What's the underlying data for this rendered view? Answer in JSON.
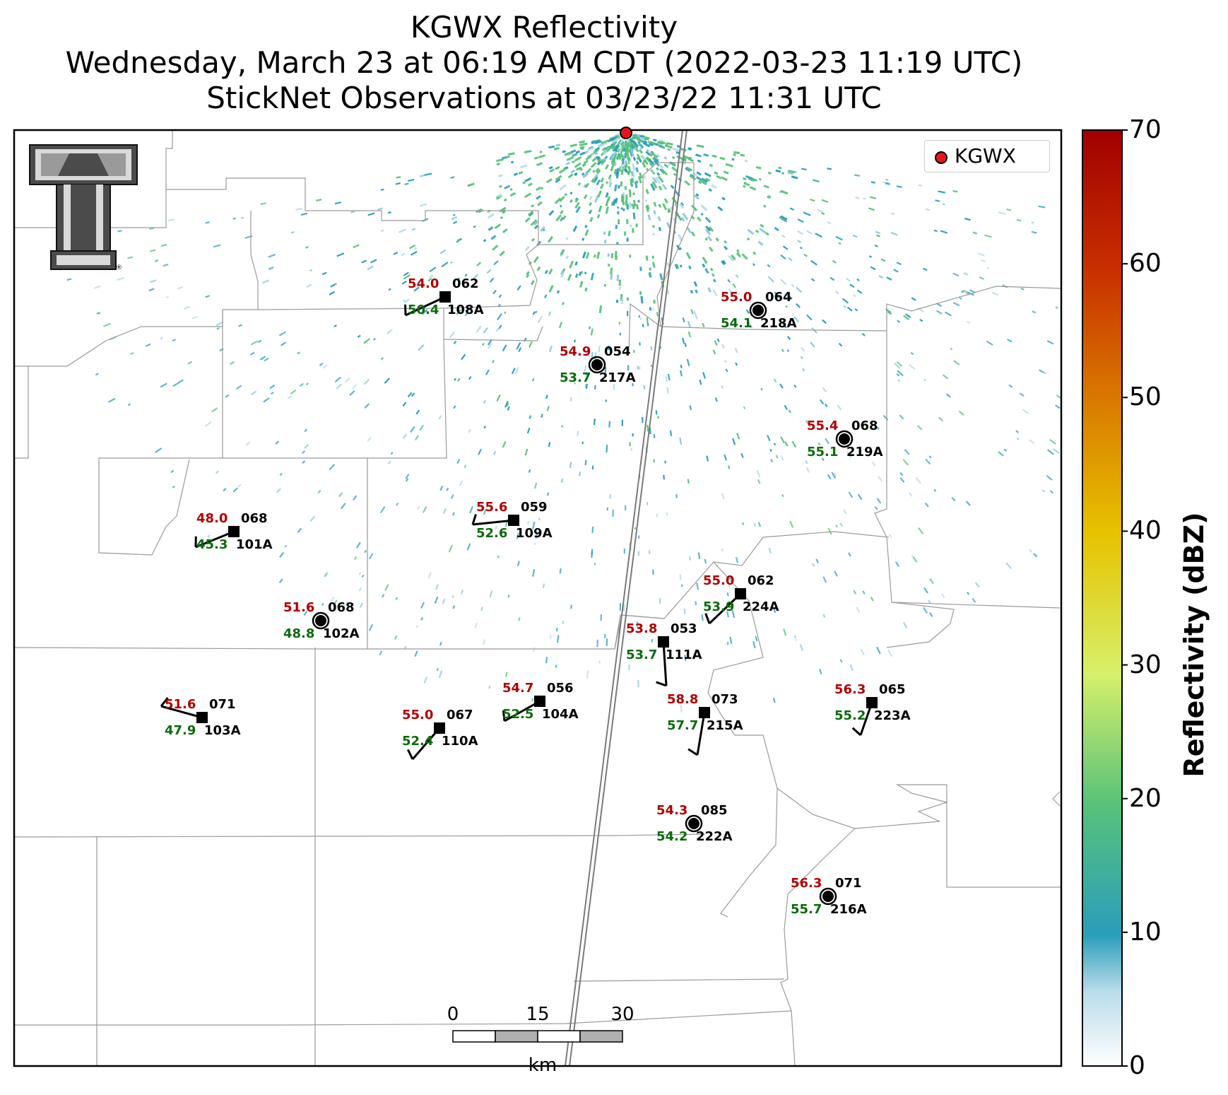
{
  "title": {
    "line1": "KGWX Reflectivity",
    "line2": "Wednesday, March 23 at 06:19 AM CDT (2022-03-23 11:19 UTC)",
    "line3": "StickNet Observations at 03/23/22 11:31 UTC"
  },
  "legend": {
    "label": "KGWX",
    "color": "#e8141a"
  },
  "logo": {
    "name": "texas-tech-double-t-logo",
    "registered_mark": "®"
  },
  "colorbar": {
    "label": "Reflectivity (dBZ)",
    "ticks": [
      "0",
      "10",
      "20",
      "30",
      "40",
      "50",
      "60",
      "70"
    ],
    "min": 0,
    "max": 70,
    "colors": [
      "#ffffff",
      "#2a9dbb",
      "#58c27a",
      "#d7f06a",
      "#e6c200",
      "#d97a00",
      "#c83000",
      "#a00000"
    ]
  },
  "scale_bar": {
    "ticks": [
      "0",
      "15",
      "30"
    ],
    "unit": "km"
  },
  "stations": [
    {
      "id": "108A",
      "temp": "54.0",
      "dew": "50.4",
      "dir": "062",
      "marker": "square"
    },
    {
      "id": "218A",
      "temp": "55.0",
      "dew": "54.1",
      "dir": "064",
      "marker": "calm"
    },
    {
      "id": "217A",
      "temp": "54.9",
      "dew": "53.7",
      "dir": "054",
      "marker": "calm"
    },
    {
      "id": "219A",
      "temp": "55.4",
      "dew": "55.1",
      "dir": "068",
      "marker": "calm"
    },
    {
      "id": "101A",
      "temp": "48.0",
      "dew": "45.3",
      "dir": "068",
      "marker": "square"
    },
    {
      "id": "109A",
      "temp": "55.6",
      "dew": "52.6",
      "dir": "059",
      "marker": "square"
    },
    {
      "id": "224A",
      "temp": "55.0",
      "dew": "53.9",
      "dir": "062",
      "marker": "square"
    },
    {
      "id": "102A",
      "temp": "51.6",
      "dew": "48.8",
      "dir": "068",
      "marker": "calm"
    },
    {
      "id": "111A",
      "temp": "53.8",
      "dew": "53.7",
      "dir": "053",
      "marker": "square"
    },
    {
      "id": "103A",
      "temp": "51.6",
      "dew": "47.9",
      "dir": "071",
      "marker": "square"
    },
    {
      "id": "110A",
      "temp": "55.0",
      "dew": "52.4",
      "dir": "067",
      "marker": "square"
    },
    {
      "id": "104A",
      "temp": "54.7",
      "dew": "52.5",
      "dir": "056",
      "marker": "square"
    },
    {
      "id": "215A",
      "temp": "58.8",
      "dew": "57.7",
      "dir": "073",
      "marker": "square"
    },
    {
      "id": "223A",
      "temp": "56.3",
      "dew": "55.2",
      "dir": "065",
      "marker": "square"
    },
    {
      "id": "222A",
      "temp": "54.3",
      "dew": "54.2",
      "dir": "085",
      "marker": "calm"
    },
    {
      "id": "216A",
      "temp": "56.3",
      "dew": "55.7",
      "dir": "071",
      "marker": "calm"
    }
  ]
}
